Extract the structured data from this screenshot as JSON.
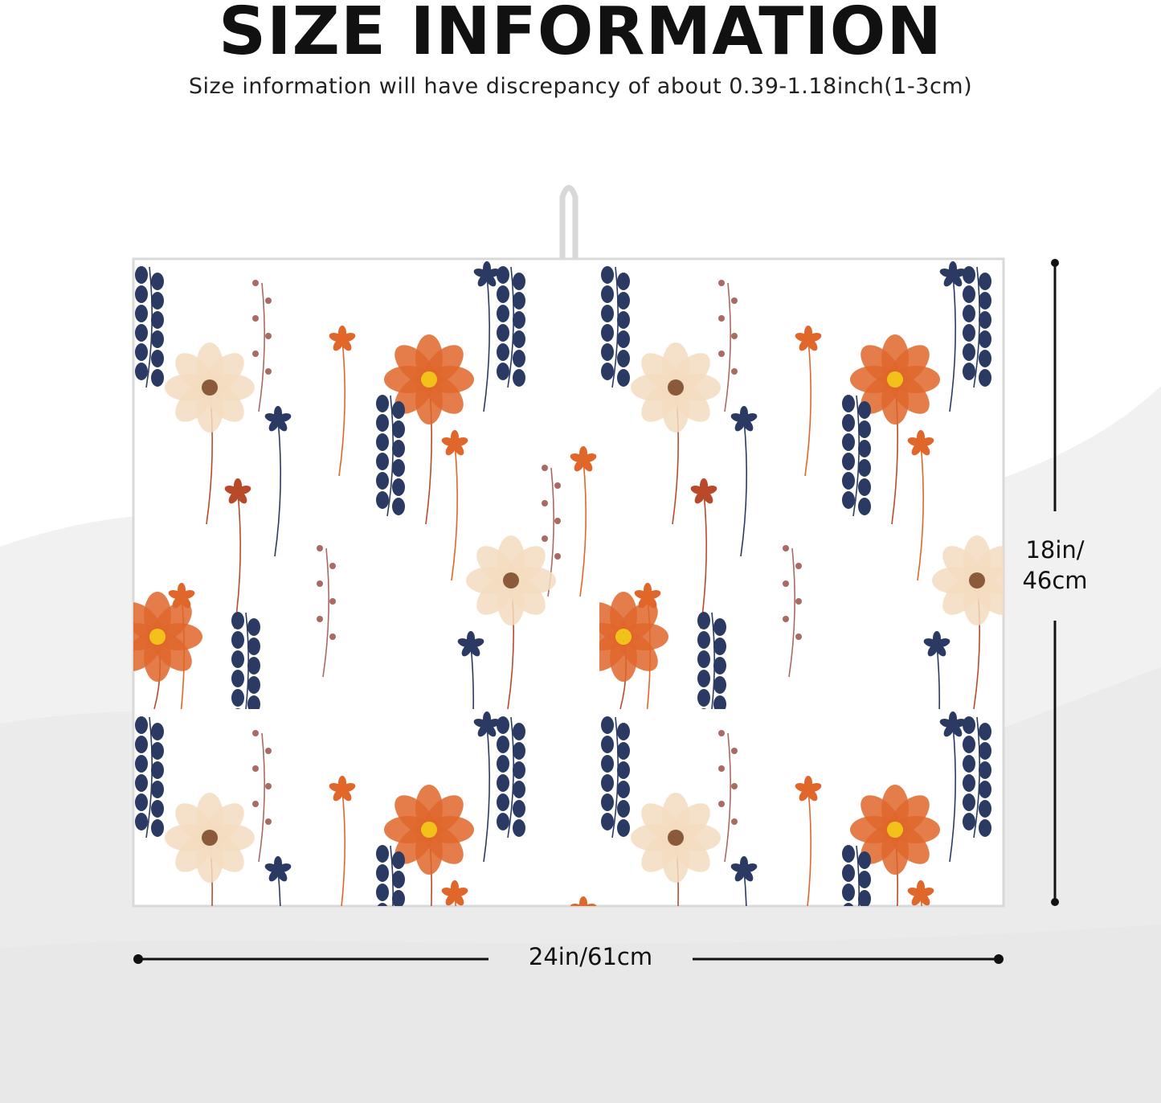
{
  "heading": {
    "title": "SIZE INFORMATION",
    "subtitle": "Size information will have discrepancy of about 0.39-1.18inch(1-3cm)"
  },
  "product": {
    "pattern_colors": {
      "navy": "#2b3a63",
      "orange": "#e0662a",
      "rust": "#b84a2a",
      "cream": "#f3dcc0",
      "blush": "#a86a62",
      "yellow": "#f2c21b"
    },
    "has_hanging_loop": true
  },
  "dimensions": {
    "width_label": "24in/61cm",
    "height_line1": "18in/",
    "height_line2": "46cm"
  },
  "colors": {
    "background": "#ffffff",
    "backdrop_grey": "#ebebeb",
    "text": "#111111"
  }
}
